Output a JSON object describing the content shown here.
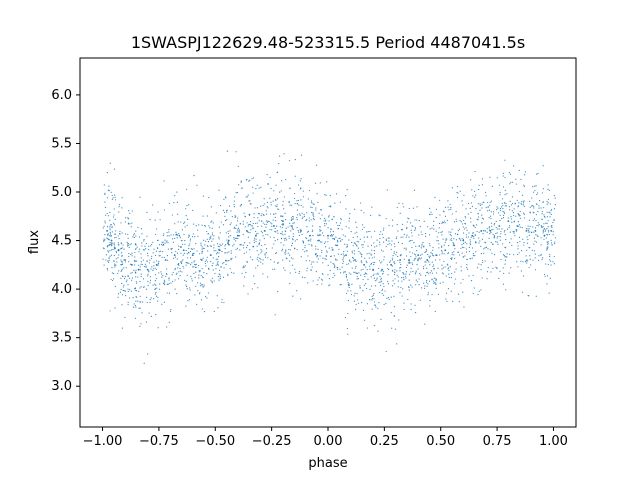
{
  "chart_data": {
    "type": "scatter",
    "title": "1SWASPJ122629.48-523315.5 Period 4487041.5s",
    "xlabel": "phase",
    "ylabel": "flux",
    "xlim": [
      -1.1,
      1.1
    ],
    "ylim": [
      2.58,
      6.38
    ],
    "xticks": [
      "−1.00",
      "−0.75",
      "−0.50",
      "−0.25",
      "0.00",
      "0.25",
      "0.50",
      "0.75",
      "1.00"
    ],
    "yticks": [
      "3.0",
      "3.5",
      "4.0",
      "4.5",
      "5.0",
      "5.5",
      "6.0"
    ],
    "grid": false,
    "legend": "none",
    "series": [
      {
        "color": "#1f77b4",
        "marker": "point",
        "x": [
          -0.98,
          -0.96,
          -0.93,
          -0.9,
          -0.87,
          -0.84,
          -0.8,
          -0.76,
          -0.72,
          -0.68,
          -0.64,
          -0.6,
          -0.56,
          -0.52,
          -0.48,
          -0.44,
          -0.4,
          -0.36,
          -0.32,
          -0.28,
          -0.24,
          -0.2,
          -0.16,
          -0.12,
          -0.08,
          -0.04,
          0.0,
          0.04,
          0.08,
          0.12,
          0.16,
          0.2,
          0.24,
          0.28,
          0.32,
          0.36,
          0.4,
          0.44,
          0.48,
          0.52,
          0.56,
          0.6,
          0.64,
          0.68,
          0.72,
          0.76,
          0.8,
          0.84,
          0.88,
          0.92,
          0.96,
          0.99
        ],
        "y": [
          4.6,
          4.5,
          4.4,
          4.3,
          4.25,
          4.2,
          4.2,
          4.25,
          4.3,
          4.35,
          4.4,
          4.35,
          4.3,
          4.35,
          4.4,
          4.5,
          4.55,
          4.6,
          4.55,
          4.6,
          4.65,
          4.7,
          4.65,
          4.6,
          4.55,
          4.5,
          4.55,
          4.45,
          4.35,
          4.3,
          4.25,
          4.2,
          4.2,
          4.25,
          4.3,
          4.3,
          4.35,
          4.3,
          4.35,
          4.4,
          4.45,
          4.5,
          4.55,
          4.6,
          4.6,
          4.65,
          4.7,
          4.65,
          4.6,
          4.6,
          4.55,
          4.6
        ]
      }
    ]
  }
}
